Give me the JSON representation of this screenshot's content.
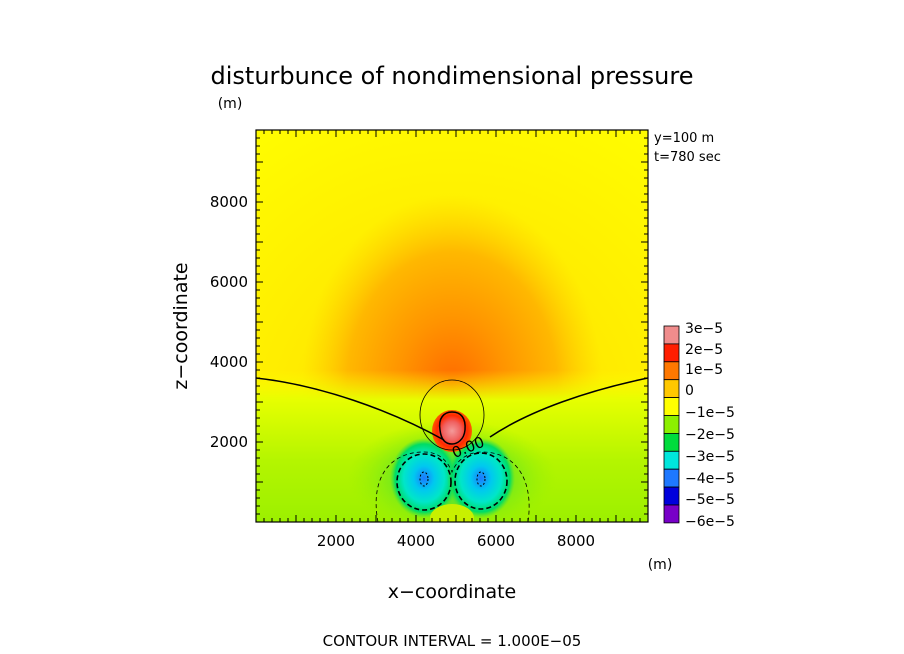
{
  "chart_data": {
    "type": "heatmap",
    "title": "disturbunce of nondimensional pressure",
    "xlabel": "x−coordinate",
    "ylabel": "z−coordinate",
    "x_unit": "(m)",
    "y_unit": "(m)",
    "xlim": [
      0,
      9800
    ],
    "ylim": [
      0,
      9800
    ],
    "x_ticks": [
      2000,
      4000,
      6000,
      8000
    ],
    "y_ticks": [
      2000,
      4000,
      6000,
      8000
    ],
    "x_tick_labels": [
      "2000",
      "4000",
      "6000",
      "8000"
    ],
    "y_tick_labels": [
      "2000",
      "4000",
      "6000",
      "8000"
    ],
    "info_lines": [
      "y=100  m",
      "t=780  sec"
    ],
    "footer": "CONTOUR INTERVAL = 1.000E−05",
    "contour_label": "0.00",
    "colorbar": {
      "levels": [
        {
          "label": "3e−5",
          "value": 3e-05,
          "color": "#f08c8c"
        },
        {
          "label": "2e−5",
          "value": 2e-05,
          "color": "#ff1e00"
        },
        {
          "label": "1e−5",
          "value": 1e-05,
          "color": "#ff7800"
        },
        {
          "label": "0",
          "value": 0,
          "color": "#ffc800"
        },
        {
          "label": "",
          "value": -5e-06,
          "color": "#ffff00"
        },
        {
          "label": "−1e−5",
          "value": -1e-05,
          "color": "#8cf000"
        },
        {
          "label": "−2e−5",
          "value": -2e-05,
          "color": "#00dc3c"
        },
        {
          "label": "−3e−5",
          "value": -3e-05,
          "color": "#00e6dc"
        },
        {
          "label": "−4e−5",
          "value": -4e-05,
          "color": "#1e78ff"
        },
        {
          "label": "−5e−5",
          "value": -5e-05,
          "color": "#0000dc"
        },
        {
          "label": "−6e−5",
          "value": -6e-05,
          "color": "#7800c8"
        }
      ]
    },
    "features": {
      "positive_max": {
        "x": 5000,
        "z": 2450,
        "value": 3e-05
      },
      "negative_min_left": {
        "x": 4300,
        "z": 1150,
        "value": -4.5e-05
      },
      "negative_min_right": {
        "x": 5700,
        "z": 1150,
        "value": -4.5e-05
      }
    }
  }
}
